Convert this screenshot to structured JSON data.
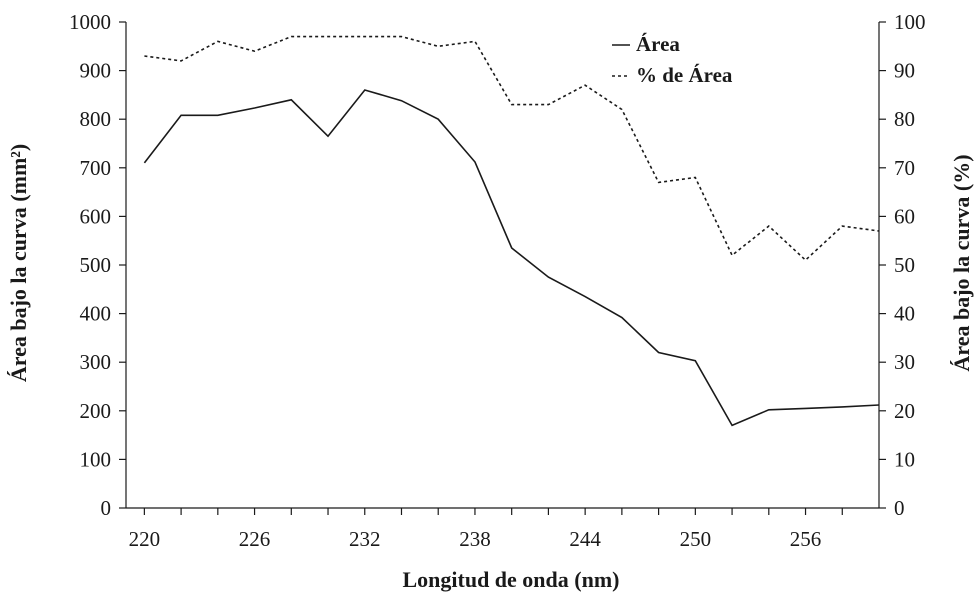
{
  "chart_data": {
    "type": "line",
    "title": "",
    "xlabel": "Longitud de onda (nm)",
    "ylabel": "Área bajo la curva (mm²)",
    "y2label": "Área bajo la curva (%)",
    "xlim": [
      219,
      260
    ],
    "ylim": [
      0,
      1000
    ],
    "y2lim": [
      0,
      100
    ],
    "x_ticks": [
      "220",
      "226",
      "232",
      "238",
      "244",
      "250",
      "256"
    ],
    "y_ticks": [
      "0",
      "100",
      "200",
      "300",
      "400",
      "500",
      "600",
      "700",
      "800",
      "900",
      "1000"
    ],
    "y2_ticks": [
      "0",
      "10",
      "20",
      "30",
      "40",
      "50",
      "60",
      "70",
      "80",
      "90",
      "100"
    ],
    "grid": false,
    "legend_position": "top-right",
    "series": [
      {
        "name": "Área",
        "axis": "left",
        "style": "solid",
        "x": [
          220,
          222,
          224,
          226,
          228,
          230,
          232,
          234,
          236,
          238,
          240,
          242,
          244,
          246,
          248,
          250,
          252,
          254,
          256,
          258,
          260
        ],
        "values": [
          710,
          808,
          808,
          823,
          840,
          765,
          860,
          838,
          800,
          712,
          535,
          475,
          435,
          392,
          320,
          303,
          170,
          202,
          205,
          208,
          212
        ]
      },
      {
        "name": "% de Área",
        "axis": "right",
        "style": "dashed",
        "x": [
          220,
          222,
          224,
          226,
          228,
          230,
          232,
          234,
          236,
          238,
          240,
          242,
          244,
          246,
          248,
          250,
          252,
          254,
          256,
          258,
          260
        ],
        "values": [
          93,
          92,
          96,
          94,
          97,
          97,
          97,
          97,
          95,
          96,
          83,
          83,
          87,
          82,
          67,
          68,
          52,
          58,
          51,
          58,
          57
        ]
      }
    ]
  }
}
